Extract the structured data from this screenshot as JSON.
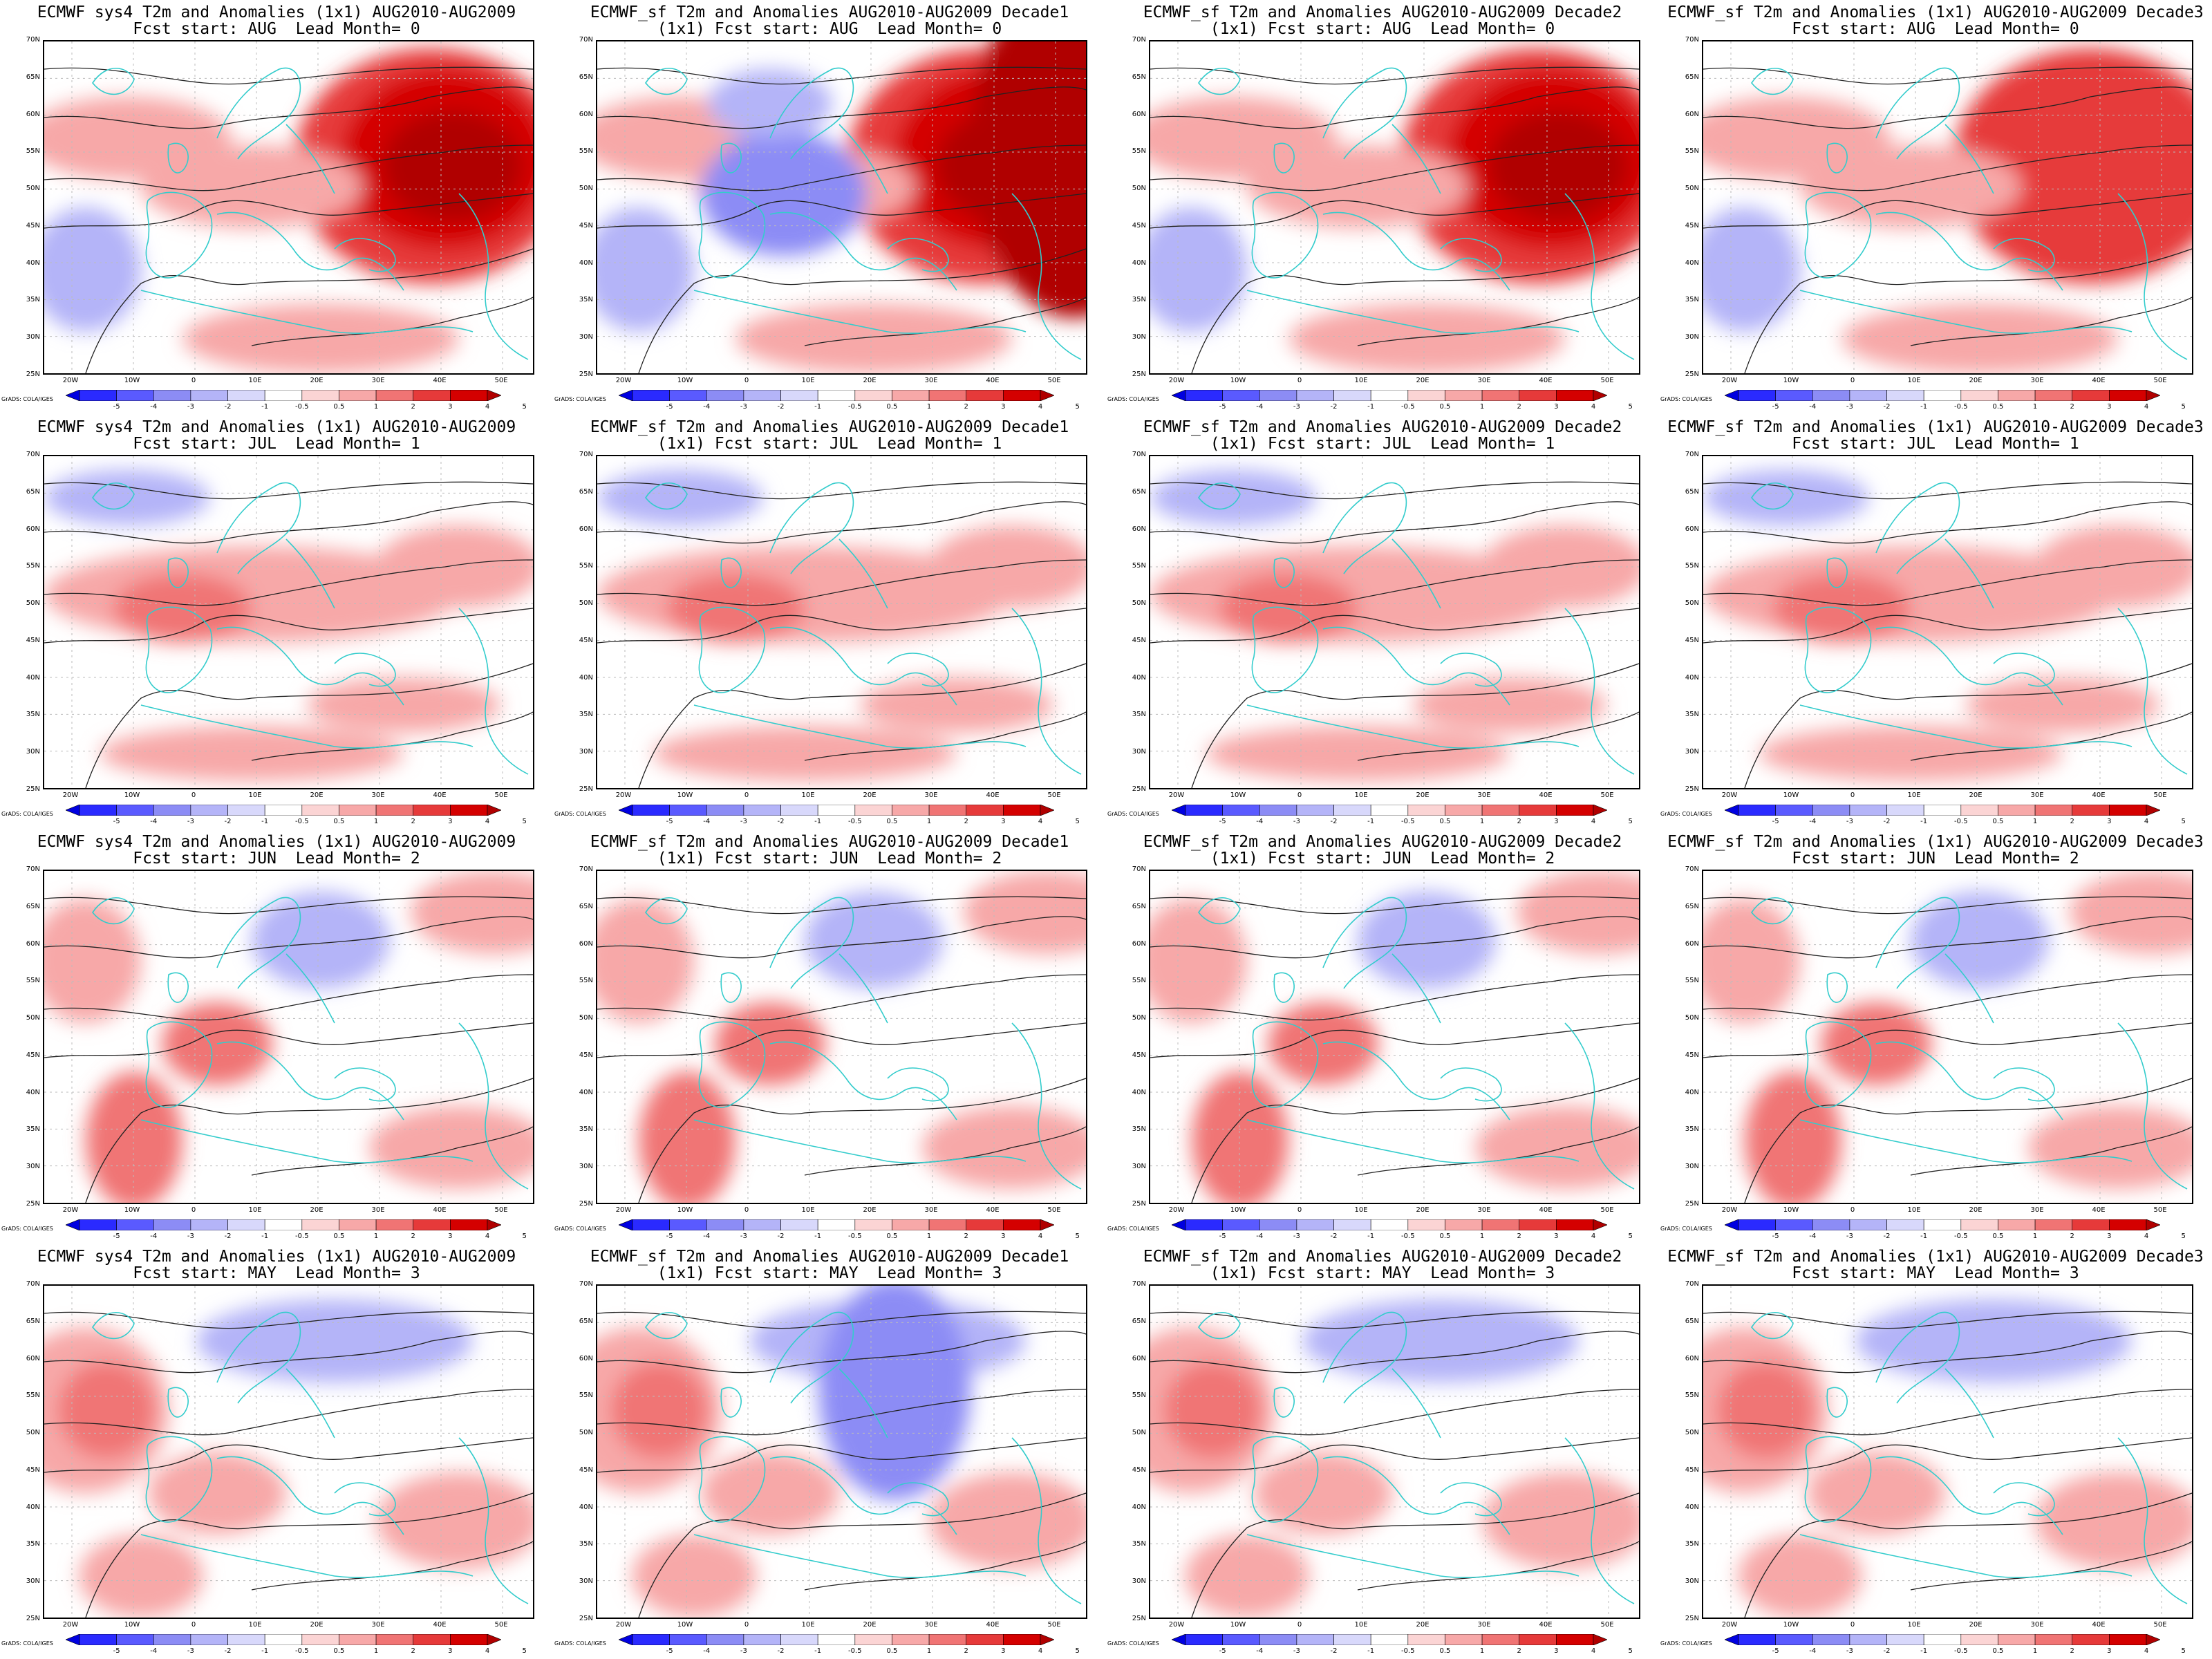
{
  "panels": [
    {
      "title1": "ECMWF sys4 T2m and Anomalies (1x1) AUG2010-AUG2009",
      "title2": "Fcst start: AUG  Lead Month= 0"
    },
    {
      "title1": "ECMWF_sf T2m and Anomalies AUG2010-AUG2009 Decade1",
      "title2": "(1x1) Fcst start: AUG  Lead Month= 0"
    },
    {
      "title1": "ECMWF_sf T2m and Anomalies AUG2010-AUG2009 Decade2",
      "title2": "(1x1) Fcst start: AUG  Lead Month= 0"
    },
    {
      "title1": "ECMWF_sf T2m and Anomalies (1x1) AUG2010-AUG2009 Decade3",
      "title2": "Fcst start: AUG  Lead Month= 0"
    },
    {
      "title1": "ECMWF sys4 T2m and Anomalies (1x1) AUG2010-AUG2009",
      "title2": "Fcst start: JUL  Lead Month= 1"
    },
    {
      "title1": "ECMWF_sf T2m and Anomalies AUG2010-AUG2009 Decade1",
      "title2": "(1x1) Fcst start: JUL  Lead Month= 1"
    },
    {
      "title1": "ECMWF_sf T2m and Anomalies AUG2010-AUG2009 Decade2",
      "title2": "(1x1) Fcst start: JUL  Lead Month= 1"
    },
    {
      "title1": "ECMWF_sf T2m and Anomalies (1x1) AUG2010-AUG2009 Decade3",
      "title2": "Fcst start: JUL  Lead Month= 1"
    },
    {
      "title1": "ECMWF sys4 T2m and Anomalies (1x1) AUG2010-AUG2009",
      "title2": "Fcst start: JUN  Lead Month= 2"
    },
    {
      "title1": "ECMWF_sf T2m and Anomalies AUG2010-AUG2009 Decade1",
      "title2": "(1x1) Fcst start: JUN  Lead Month= 2"
    },
    {
      "title1": "ECMWF_sf T2m and Anomalies AUG2010-AUG2009 Decade2",
      "title2": "(1x1) Fcst start: JUN  Lead Month= 2"
    },
    {
      "title1": "ECMWF_sf T2m and Anomalies (1x1) AUG2010-AUG2009 Decade3",
      "title2": "Fcst start: JUN  Lead Month= 2"
    },
    {
      "title1": "ECMWF sys4 T2m and Anomalies (1x1) AUG2010-AUG2009",
      "title2": "Fcst start: MAY  Lead Month= 3"
    },
    {
      "title1": "ECMWF_sf T2m and Anomalies AUG2010-AUG2009 Decade1",
      "title2": "(1x1) Fcst start: MAY  Lead Month= 3"
    },
    {
      "title1": "ECMWF_sf T2m and Anomalies AUG2010-AUG2009 Decade2",
      "title2": "(1x1) Fcst start: MAY  Lead Month= 3"
    },
    {
      "title1": "ECMWF_sf T2m and Anomalies (1x1) AUG2010-AUG2009 Decade3",
      "title2": "Fcst start: MAY  Lead Month= 3"
    }
  ],
  "lat_labels": [
    "70N",
    "65N",
    "60N",
    "55N",
    "50N",
    "45N",
    "40N",
    "35N",
    "30N",
    "25N"
  ],
  "lon_labels": [
    "20W",
    "10W",
    "0",
    "10E",
    "20E",
    "30E",
    "40E",
    "50E"
  ],
  "colorbar_ticks": [
    "-5",
    "-4",
    "-3",
    "-2",
    "-1",
    "-0.5",
    "0.5",
    "1",
    "2",
    "3",
    "4",
    "5"
  ],
  "colorbar_colors": [
    "#0000e0",
    "#2a2aff",
    "#5a5aff",
    "#8c8cf5",
    "#b4b4f8",
    "#d8d8fb",
    "#ffffff",
    "#fbd4d4",
    "#f7a8a8",
    "#f07474",
    "#e63a3a",
    "#d40000",
    "#b00000"
  ],
  "credit": "GrADS: COLA/IGES",
  "colors": {
    "coast": "#33cccc",
    "contour": "#222222",
    "grid": "#bbbbbb"
  }
}
